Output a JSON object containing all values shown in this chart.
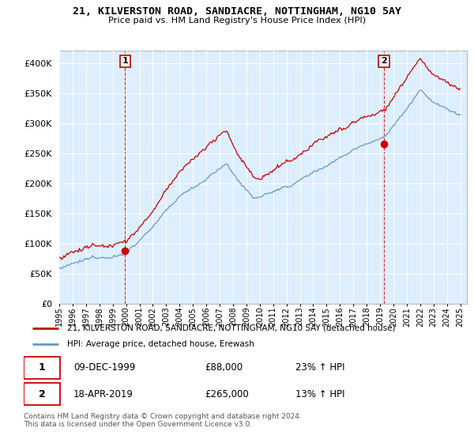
{
  "title": "21, KILVERSTON ROAD, SANDIACRE, NOTTINGHAM, NG10 5AY",
  "subtitle": "Price paid vs. HM Land Registry's House Price Index (HPI)",
  "legend_line1": "21, KILVERSTON ROAD, SANDIACRE, NOTTINGHAM, NG10 5AY (detached house)",
  "legend_line2": "HPI: Average price, detached house, Erewash",
  "annotation1_date": "09-DEC-1999",
  "annotation1_price": "£88,000",
  "annotation1_hpi": "23% ↑ HPI",
  "annotation2_date": "18-APR-2019",
  "annotation2_price": "£265,000",
  "annotation2_hpi": "13% ↑ HPI",
  "footer": "Contains HM Land Registry data © Crown copyright and database right 2024.\nThis data is licensed under the Open Government Licence v3.0.",
  "red_color": "#cc0000",
  "blue_color": "#6699cc",
  "plot_bg": "#ddeeff",
  "background_color": "#ffffff",
  "grid_color": "#ffffff",
  "ylim": [
    0,
    420000
  ],
  "yticks": [
    0,
    50000,
    100000,
    150000,
    200000,
    250000,
    300000,
    350000,
    400000
  ],
  "sale1_x": 1999.92,
  "sale1_y": 88000,
  "sale2_x": 2019.29,
  "sale2_y": 265000,
  "xmin": 1995,
  "xmax": 2025.5
}
